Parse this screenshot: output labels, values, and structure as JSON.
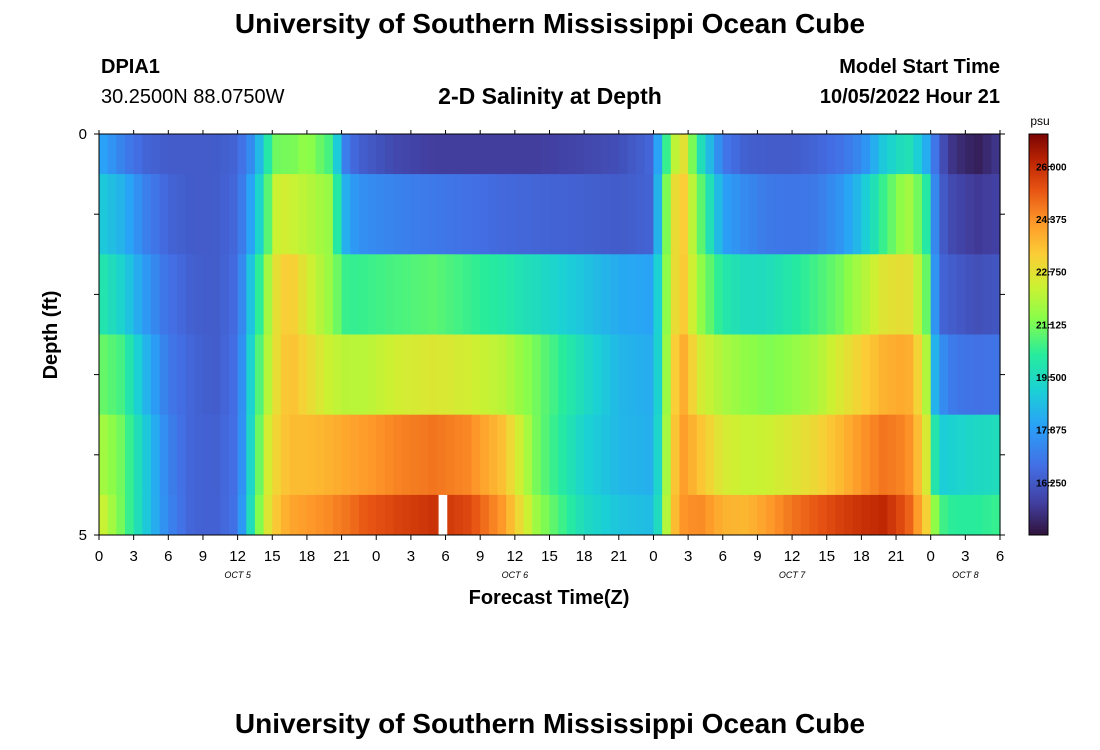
{
  "header": {
    "title": "University of Southern Mississippi Ocean Cube",
    "station_id": "DPIA1",
    "coordinates": "30.2500N  88.0750W",
    "subtitle": "2-D Salinity at Depth",
    "model_start_label": "Model Start Time",
    "model_start_value": "10/05/2022 Hour 21",
    "footer_title": "University of Southern Mississippi Ocean Cube"
  },
  "chart_data": {
    "type": "heatmap",
    "title": "2-D Salinity at Depth",
    "xlabel": "Forecast Time(Z)",
    "ylabel": "Depth (ft)",
    "x_start": "10/05/2022 00Z",
    "x_step_hours": 3,
    "x_range_hours": [
      0,
      78
    ],
    "x_tick_labels": [
      "0",
      "3",
      "6",
      "9",
      "12",
      "15",
      "18",
      "21",
      "0",
      "3",
      "6",
      "9",
      "12",
      "15",
      "18",
      "21",
      "0",
      "3",
      "6",
      "9",
      "12",
      "15",
      "18",
      "21",
      "0",
      "3",
      "6"
    ],
    "day_labels": [
      {
        "label": "OCT 5",
        "hour": 12
      },
      {
        "label": "OCT 6",
        "hour": 36
      },
      {
        "label": "OCT 7",
        "hour": 60
      },
      {
        "label": "OCT 8",
        "hour": 75
      }
    ],
    "y_range": [
      0,
      5
    ],
    "y_tick_labels": [
      {
        "value": 0,
        "label": "0"
      },
      {
        "value": 5,
        "label": "5"
      }
    ],
    "depth_layers_ft": [
      0.5,
      1.5,
      2.5,
      3.5,
      4.5,
      5.0
    ],
    "missing_data_hours": [
      29.4
    ],
    "colorbar": {
      "unit": "psu",
      "min": 14.625,
      "max": 27.0,
      "ticks": [
        26.0,
        24.375,
        22.75,
        21.125,
        19.5,
        17.875,
        16.25
      ],
      "tick_labels": [
        "26.000",
        "24.375",
        "22.750",
        "21.125",
        "19.500",
        "17.875",
        "16.250"
      ]
    },
    "salinity_hours": [
      0,
      2,
      4,
      6,
      8,
      10,
      12,
      13.5,
      14.5,
      15.5,
      16.5,
      18,
      20,
      21.5,
      23,
      26,
      29,
      32,
      35,
      38,
      42,
      45,
      48,
      48.5,
      49.5,
      50.5,
      52,
      54,
      56,
      58,
      60,
      62,
      64,
      66,
      68,
      70,
      71.5,
      72.3,
      73,
      74,
      76,
      78
    ],
    "salinity_psu": [
      [
        18.2,
        17.2,
        16.5,
        16.3,
        16.3,
        16.3,
        16.5,
        17.8,
        19.8,
        21.2,
        21.0,
        21.5,
        20.5,
        16.8,
        16.3,
        15.8,
        15.6,
        15.6,
        15.6,
        15.6,
        15.8,
        16.0,
        16.6,
        18.5,
        21.5,
        23.0,
        19.8,
        17.0,
        16.4,
        16.3,
        16.3,
        16.5,
        16.8,
        17.4,
        19.0,
        19.8,
        18.5,
        17.0,
        16.0,
        15.3,
        14.9,
        15.5
      ],
      [
        19.0,
        18.4,
        17.2,
        16.5,
        16.3,
        16.3,
        16.6,
        18.5,
        20.5,
        22.5,
        22.3,
        22.0,
        21.5,
        18.0,
        17.5,
        17.2,
        17.0,
        16.8,
        16.6,
        16.5,
        16.4,
        16.3,
        16.5,
        19.0,
        22.5,
        23.5,
        21.0,
        18.0,
        17.4,
        17.0,
        16.9,
        17.0,
        17.6,
        18.7,
        20.5,
        21.8,
        20.5,
        17.5,
        16.3,
        15.8,
        15.5,
        15.7
      ],
      [
        20.0,
        19.2,
        17.8,
        16.8,
        16.4,
        16.3,
        16.7,
        19.5,
        21.5,
        23.0,
        23.4,
        22.5,
        21.5,
        20.3,
        20.4,
        20.6,
        20.8,
        20.4,
        20.0,
        19.5,
        18.8,
        18.2,
        18.0,
        19.5,
        22.5,
        23.5,
        21.5,
        20.0,
        19.5,
        19.6,
        20.0,
        20.5,
        21.0,
        21.8,
        22.7,
        22.9,
        21.5,
        17.8,
        16.5,
        16.3,
        16.0,
        16.2
      ],
      [
        21.0,
        20.5,
        18.5,
        17.0,
        16.5,
        16.3,
        16.8,
        20.0,
        21.8,
        23.0,
        23.6,
        23.0,
        22.2,
        22.0,
        22.0,
        22.4,
        22.6,
        22.4,
        22.0,
        21.0,
        19.5,
        18.5,
        18.2,
        19.5,
        22.8,
        24.0,
        22.5,
        21.8,
        21.4,
        21.2,
        21.4,
        21.8,
        22.5,
        23.2,
        23.8,
        24.0,
        22.5,
        18.5,
        17.5,
        17.0,
        16.8,
        16.9
      ],
      [
        21.8,
        21.0,
        19.0,
        17.2,
        16.5,
        16.4,
        16.8,
        20.2,
        22.3,
        23.2,
        23.6,
        23.6,
        23.8,
        24.0,
        24.2,
        24.6,
        24.8,
        24.5,
        23.5,
        21.0,
        19.2,
        18.5,
        18.3,
        19.6,
        23.0,
        24.2,
        23.5,
        22.5,
        22.2,
        22.3,
        22.6,
        23.0,
        23.6,
        24.3,
        24.8,
        24.5,
        23.0,
        20.0,
        19.0,
        19.2,
        19.4,
        19.6
      ],
      [
        22.5,
        21.0,
        19.0,
        17.3,
        16.5,
        16.4,
        16.9,
        20.5,
        22.5,
        23.5,
        24.0,
        24.2,
        24.5,
        24.8,
        25.2,
        25.6,
        25.9,
        25.5,
        24.2,
        21.5,
        19.5,
        18.8,
        18.6,
        19.8,
        23.2,
        24.3,
        24.5,
        23.8,
        23.7,
        24.2,
        24.8,
        25.2,
        25.6,
        25.9,
        26.1,
        25.2,
        23.5,
        21.5,
        20.5,
        20.2,
        20.2,
        20.4
      ]
    ]
  }
}
